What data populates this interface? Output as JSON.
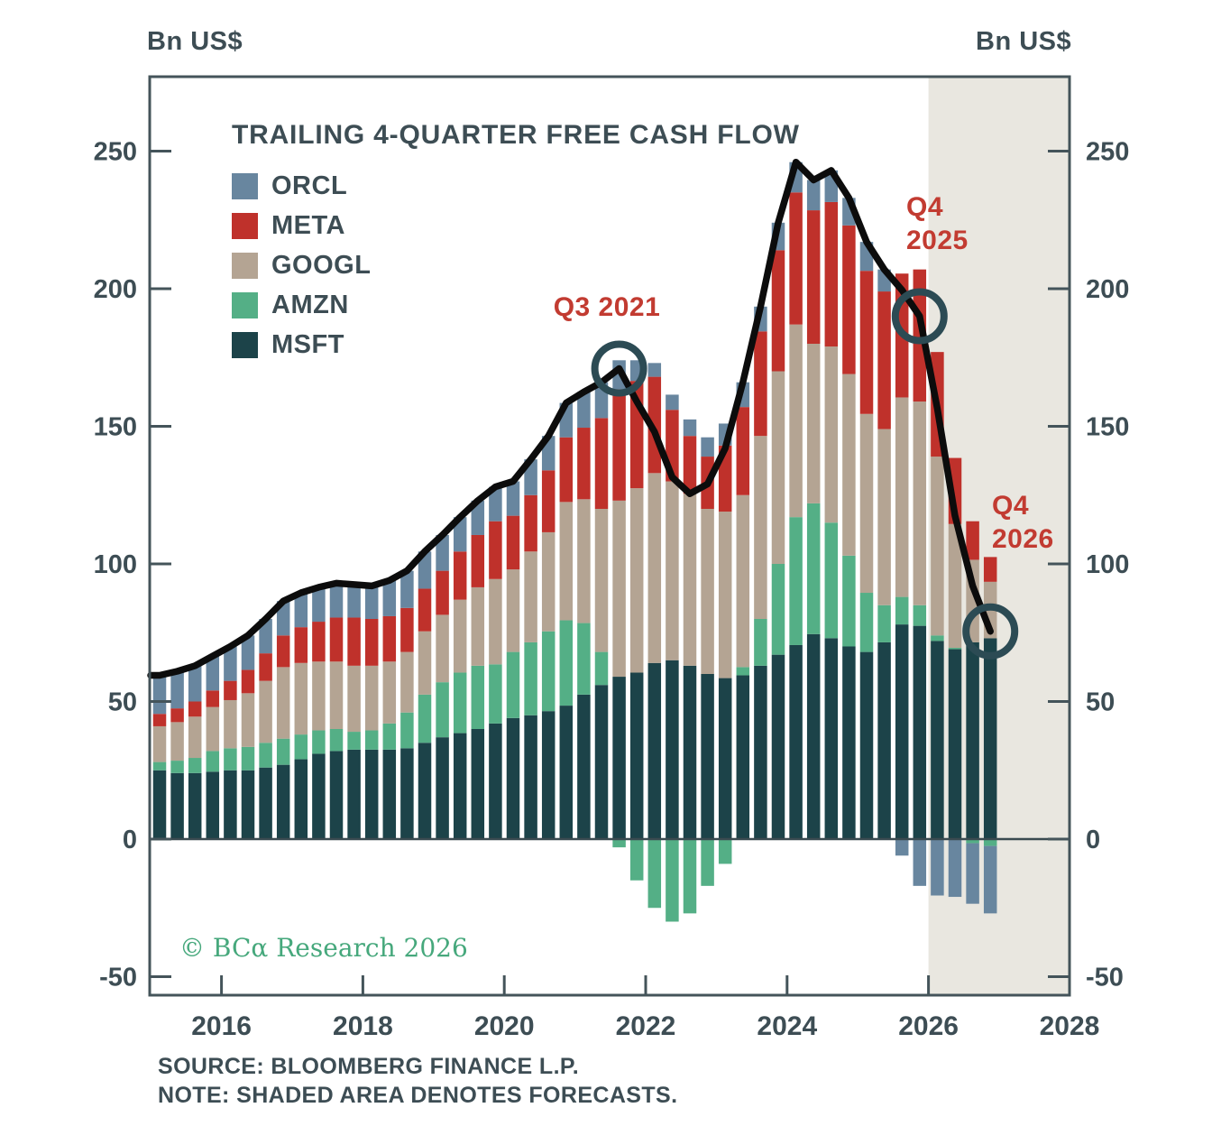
{
  "axes": {
    "unit_left": "Bn US$",
    "unit_right": "Bn US$"
  },
  "footer": {
    "source": "SOURCE: BLOOMBERG FINANCE L.P.",
    "note": "NOTE: SHADED AREA DENOTES FORECASTS."
  },
  "watermark": "© BCα Research 2026",
  "colors": {
    "shade": "#e9e7e0",
    "total_line": "#0c0c0c",
    "circle_ring": "#2c4b54",
    "axis_text": "#3d4d54",
    "border": "#44545a",
    "zero_line": "#3a4a50",
    "annotation_red": "#c23b31",
    "copyright_green": "#46a87c"
  },
  "chart_data": {
    "type": "bar",
    "stacked": true,
    "title": "TRAILING 4-QUARTER FREE CASH FLOW",
    "ylabel": "Bn US$",
    "ylim": [
      -57,
      277
    ],
    "y_ticks": [
      250,
      200,
      150,
      100,
      50,
      0,
      -50
    ],
    "x_year_ticks": [
      2016,
      2018,
      2020,
      2022,
      2024,
      2026,
      2028
    ],
    "grid": false,
    "legend_position": "top-left",
    "forecast_start_index": 44,
    "forecast_note": "shaded area denotes forecasts",
    "categories": [
      "2015Q1",
      "2015Q2",
      "2015Q3",
      "2015Q4",
      "2016Q1",
      "2016Q2",
      "2016Q3",
      "2016Q4",
      "2017Q1",
      "2017Q2",
      "2017Q3",
      "2017Q4",
      "2018Q1",
      "2018Q2",
      "2018Q3",
      "2018Q4",
      "2019Q1",
      "2019Q2",
      "2019Q3",
      "2019Q4",
      "2020Q1",
      "2020Q2",
      "2020Q3",
      "2020Q4",
      "2021Q1",
      "2021Q2",
      "2021Q3",
      "2021Q4",
      "2022Q1",
      "2022Q2",
      "2022Q3",
      "2022Q4",
      "2023Q1",
      "2023Q2",
      "2023Q3",
      "2023Q4",
      "2024Q1",
      "2024Q2",
      "2024Q3",
      "2024Q4",
      "2025Q1",
      "2025Q2",
      "2025Q3",
      "2025Q4",
      "2026Q1",
      "2026Q2",
      "2026Q3",
      "2026Q4"
    ],
    "series": [
      {
        "name": "ORCL",
        "color": "#68869f",
        "values": [
          14,
          13.5,
          13,
          12.5,
          12.5,
          12.5,
          12.5,
          12.5,
          12.5,
          12.5,
          12.5,
          12,
          12,
          13,
          13.5,
          13.5,
          13,
          12.5,
          12.5,
          12.5,
          12.5,
          13,
          12.5,
          12.5,
          13,
          13,
          10.5,
          7.5,
          5,
          5.5,
          6,
          7,
          8,
          9,
          9,
          10,
          11,
          11,
          11.5,
          10,
          10.5,
          8,
          -6,
          -17,
          -20.5,
          -21,
          -22,
          -24.5
        ]
      },
      {
        "name": "META",
        "color": "#bf312b",
        "values": [
          4.5,
          5,
          5.5,
          6,
          7,
          8.5,
          10,
          11.5,
          13,
          14.5,
          16,
          17.5,
          17,
          16.5,
          16,
          15.5,
          16,
          17.5,
          19,
          21,
          19.5,
          20.5,
          22.5,
          23.5,
          26,
          33,
          40.5,
          39,
          35,
          26,
          21,
          19,
          24,
          32,
          38,
          44,
          48,
          48.5,
          52.5,
          54,
          52,
          50,
          45,
          48,
          38,
          24,
          14,
          9
        ]
      },
      {
        "name": "GOOGL",
        "color": "#b4a493",
        "values": [
          13,
          14,
          15,
          16,
          17.5,
          19.5,
          22.5,
          26,
          26,
          25,
          24.5,
          24,
          23.5,
          22.5,
          22,
          23,
          24.5,
          26.5,
          28.5,
          31,
          30,
          33,
          36,
          43,
          45,
          52,
          64,
          67,
          69,
          65,
          62.5,
          60,
          60.5,
          62.5,
          66.5,
          70,
          70,
          58,
          64,
          66,
          65,
          64,
          72.5,
          74,
          65,
          45,
          30,
          20.5
        ]
      },
      {
        "name": "AMZN",
        "color": "#54af86",
        "values": [
          3,
          4.5,
          5.5,
          7.5,
          8,
          8.5,
          9,
          9.5,
          9,
          8.5,
          8,
          6.5,
          7,
          9.5,
          13,
          17.5,
          20,
          22,
          23,
          21.5,
          24,
          26.5,
          29,
          31,
          26,
          12,
          -3,
          -15,
          -25,
          -30,
          -27,
          -17,
          -9,
          3,
          17,
          33,
          46.5,
          47.5,
          42,
          33,
          21.5,
          13.5,
          10,
          7.5,
          2,
          0.5,
          -1.5,
          -2.5
        ]
      },
      {
        "name": "MSFT",
        "color": "#1c4349",
        "values": [
          25,
          24,
          24,
          24.5,
          25,
          25,
          26,
          27,
          29,
          31,
          32,
          32.5,
          32.5,
          32.5,
          33,
          35,
          37,
          38.5,
          40,
          42,
          44,
          45,
          46.5,
          48.5,
          52.5,
          56,
          59,
          60.5,
          64,
          65,
          63,
          60,
          58.5,
          59.5,
          63,
          67,
          70.5,
          74.5,
          73,
          70,
          68,
          71.5,
          78,
          77.5,
          72,
          69,
          71.5,
          73
        ]
      }
    ],
    "line_overlay": {
      "name": "Total of five components",
      "color": "#0c0c0c"
    },
    "annotations": [
      {
        "line1": "Q3 2021",
        "line2": "",
        "quarter_index": 26
      },
      {
        "line1": "Q4",
        "line2": "2025",
        "quarter_index": 43
      },
      {
        "line1": "Q4",
        "line2": "2026",
        "quarter_index": 47
      }
    ]
  }
}
